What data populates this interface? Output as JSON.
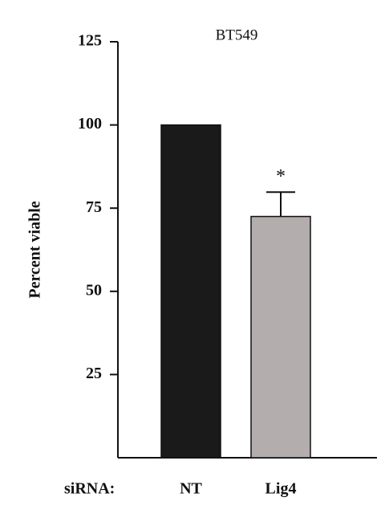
{
  "chart_data": {
    "type": "bar",
    "title": "BT549",
    "ylabel": "Percent viable",
    "xlabel": "siRNA:",
    "categories": [
      "NT",
      "Lig4"
    ],
    "values": [
      100,
      72.5
    ],
    "errors": [
      null,
      7.3
    ],
    "colors": [
      "#1a1a1a",
      "#b3adad"
    ],
    "annotation": "*",
    "ylim": [
      0,
      125
    ],
    "yticks": [
      25,
      50,
      75,
      100,
      125
    ],
    "grid": false
  }
}
